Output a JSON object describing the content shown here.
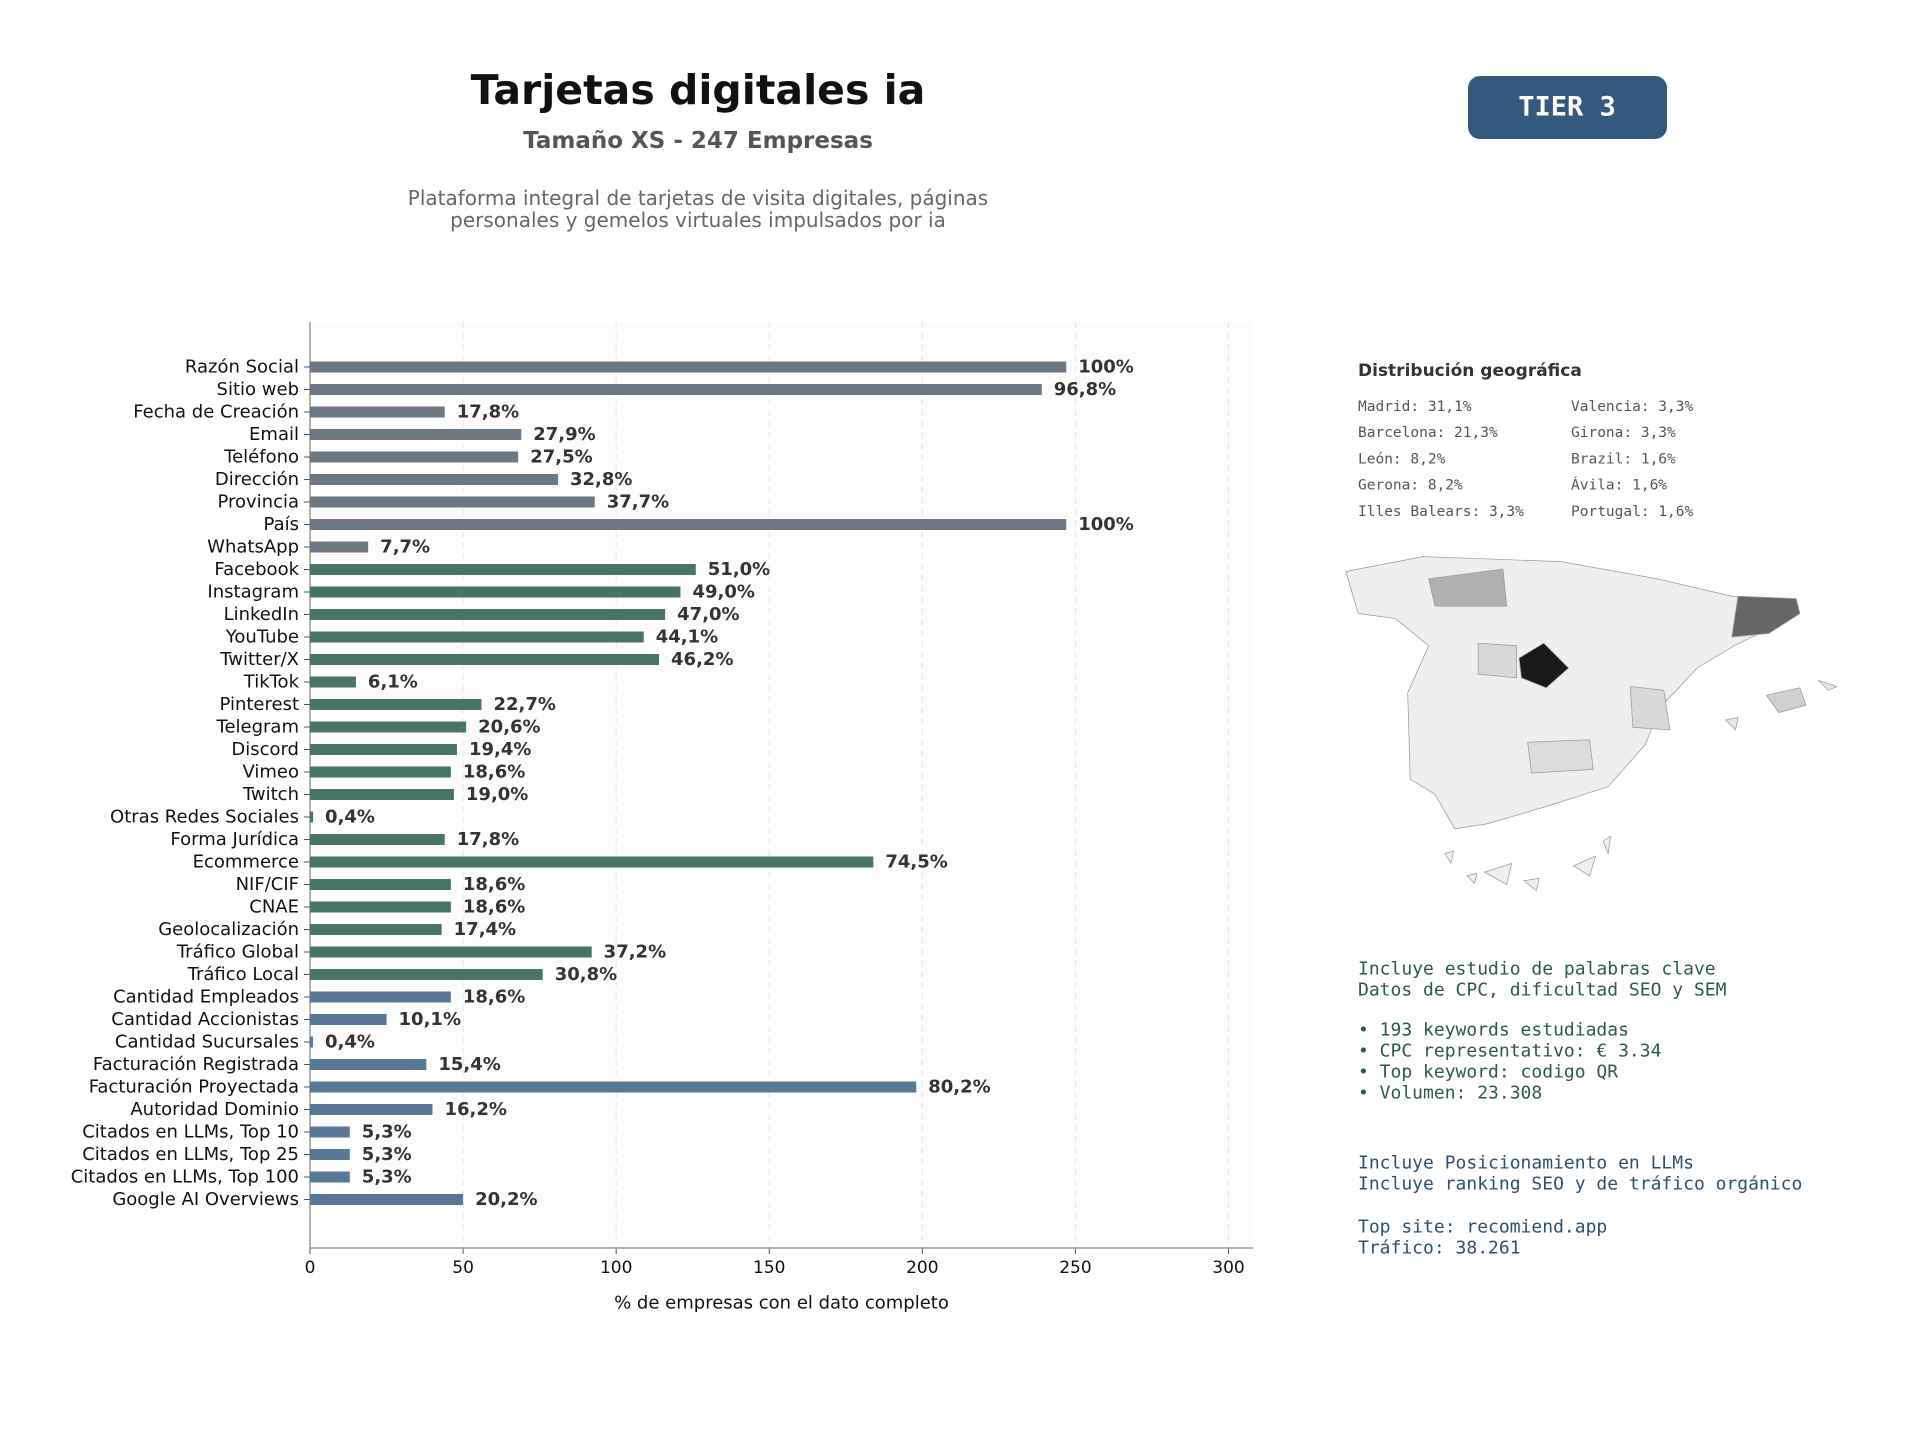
{
  "chart_data": {
    "type": "barh",
    "title": "Tarjetas digitales ia",
    "subtitle": "Tamaño XS - 247 Empresas",
    "description": [
      "Plataforma integral de tarjetas de visita digitales, páginas",
      "personales y gemelos virtuales impulsados por ia"
    ],
    "badge": "TIER 3",
    "categories": [
      "Razón Social",
      "Sitio web",
      "Fecha de Creación",
      "Email",
      "Teléfono",
      "Dirección",
      "Provincia",
      "País",
      "WhatsApp",
      "Facebook",
      "Instagram",
      "LinkedIn",
      "YouTube",
      "Twitter/X",
      "TikTok",
      "Pinterest",
      "Telegram",
      "Discord",
      "Vimeo",
      "Twitch",
      "Otras Redes Sociales",
      "Forma Jurídica",
      "Ecommerce",
      "NIF/CIF",
      "CNAE",
      "Geolocalización",
      "Tráfico Global",
      "Tráfico Local",
      "Cantidad Empleados",
      "Cantidad Accionistas",
      "Cantidad Sucursales",
      "Facturación Registrada",
      "Facturación Proyectada",
      "Autoridad Dominio",
      "Citados en LLMs, Top 10",
      "Citados en LLMs, Top 25",
      "Citados en LLMs, Top 100",
      "Google AI Overviews"
    ],
    "values": [
      247,
      239,
      44,
      69,
      68,
      81,
      93,
      247,
      19,
      126,
      121,
      116,
      109,
      114,
      15,
      56,
      51,
      48,
      46,
      47,
      1,
      44,
      184,
      46,
      46,
      43,
      92,
      76,
      46,
      25,
      1,
      38,
      198,
      40,
      13,
      13,
      13,
      50
    ],
    "value_labels": [
      "100%",
      "96,8%",
      "17,8%",
      "27,9%",
      "27,5%",
      "32,8%",
      "37,7%",
      "100%",
      "7,7%",
      "51,0%",
      "49,0%",
      "47,0%",
      "44,1%",
      "46,2%",
      "6,1%",
      "22,7%",
      "20,6%",
      "19,4%",
      "18,6%",
      "19,0%",
      "0,4%",
      "17,8%",
      "74,5%",
      "18,6%",
      "18,6%",
      "17,4%",
      "37,2%",
      "30,8%",
      "18,6%",
      "10,1%",
      "0,4%",
      "15,4%",
      "80,2%",
      "16,2%",
      "5,3%",
      "5,3%",
      "5,3%",
      "20,2%"
    ],
    "colors": [
      "#6e7882",
      "#6e7882",
      "#6e7882",
      "#6e7882",
      "#6e7882",
      "#6e7882",
      "#6e7882",
      "#6e7882",
      "#6e7882",
      "#4a7565",
      "#4a7565",
      "#4a7565",
      "#4a7565",
      "#4a7565",
      "#4a7565",
      "#4a7565",
      "#4a7565",
      "#4a7565",
      "#4a7565",
      "#4a7565",
      "#4a7565",
      "#4a7565",
      "#4a7565",
      "#4a7565",
      "#4a7565",
      "#4a7565",
      "#4a7565",
      "#4a7565",
      "#5a7895",
      "#5a7895",
      "#5a7895",
      "#5a7895",
      "#5a7895",
      "#5a7895",
      "#5a7895",
      "#5a7895",
      "#5a7895",
      "#5a7895"
    ],
    "xlim": [
      0,
      308
    ],
    "xticks": [
      0,
      50,
      100,
      150,
      200,
      250,
      300
    ],
    "xlabel": "% de empresas con el dato completo",
    "grid": true
  },
  "geo": {
    "title": "Distribución geográfica",
    "items": [
      "Madrid: 31,1%",
      "Barcelona: 21,3%",
      "León: 8,2%",
      "Gerona: 8,2%",
      "Illes Balears: 3,3%",
      "Valencia: 3,3%",
      "Girona: 3,3%",
      "Brazil: 1,6%",
      "Ávila: 1,6%",
      "Portugal: 1,6%"
    ]
  },
  "keywords": {
    "intro": [
      "Incluye estudio de palabras clave",
      "Datos de CPC, dificultad SEO y SEM"
    ],
    "bullets": [
      "• 193 keywords estudiadas",
      "• CPC representativo: € 3.34",
      "• Top keyword: codigo QR",
      "• Volumen: 23.308"
    ]
  },
  "llm": {
    "intro": [
      "Incluye Posicionamiento en LLMs",
      "Incluye ranking SEO y de tráfico orgánico"
    ],
    "top": [
      "Top site: recomiend.app",
      "Tráfico: 38.261"
    ]
  }
}
